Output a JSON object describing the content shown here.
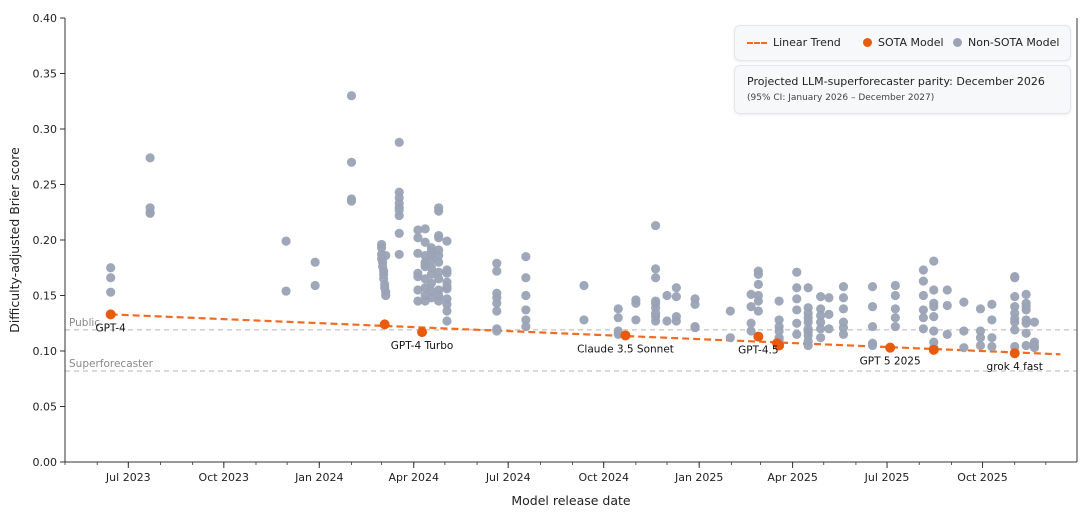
{
  "chart_data": {
    "type": "scatter",
    "xlabel": "Model release date",
    "ylabel": "Difficulty-adjusted Brier score",
    "ylim": [
      0.0,
      0.4
    ],
    "yticks": [
      "0.00",
      "0.05",
      "0.10",
      "0.15",
      "0.20",
      "0.25",
      "0.30",
      "0.35",
      "0.40"
    ],
    "xlim": [
      "2023-05-01",
      "2025-12-31"
    ],
    "xticks": [
      {
        "label": "Jul 2023",
        "date": "2023-07-01"
      },
      {
        "label": "Oct 2023",
        "date": "2023-10-01"
      },
      {
        "label": "Jan 2024",
        "date": "2024-01-01"
      },
      {
        "label": "Apr 2024",
        "date": "2024-04-01"
      },
      {
        "label": "Jul 2024",
        "date": "2024-07-01"
      },
      {
        "label": "Oct 2024",
        "date": "2024-10-01"
      },
      {
        "label": "Jan 2025",
        "date": "2025-01-01"
      },
      {
        "label": "Apr 2025",
        "date": "2025-04-01"
      },
      {
        "label": "Jul 2025",
        "date": "2025-07-01"
      },
      {
        "label": "Oct 2025",
        "date": "2025-10-01"
      }
    ],
    "reference_lines": [
      {
        "name": "Public",
        "y": 0.119
      },
      {
        "name": "Superforecaster",
        "y": 0.082
      }
    ],
    "legend": {
      "position": "top-right",
      "entries": [
        {
          "label": "Linear Trend",
          "style": "dashed-line",
          "color": "#f26b21"
        },
        {
          "label": "SOTA Model",
          "style": "dot",
          "color": "#ea5a0c"
        },
        {
          "label": "Non-SOTA Model",
          "style": "dot",
          "color": "#9aa3b5"
        }
      ]
    },
    "projection": {
      "line1": "Projected LLM-superforecaster parity: December 2026",
      "line2": "(95% CI: January 2026 – December 2027)"
    },
    "trend": {
      "x": [
        "2023-06-14",
        "2025-12-15"
      ],
      "y": [
        0.133,
        0.097
      ],
      "color": "#f26b21"
    },
    "sota_models": [
      {
        "x": "2023-06-14",
        "y": 0.133,
        "label": "GPT-4"
      },
      {
        "x": "2024-03-04",
        "y": 0.124,
        "label": ""
      },
      {
        "x": "2024-04-09",
        "y": 0.117,
        "label": "GPT-4 Turbo"
      },
      {
        "x": "2024-10-22",
        "y": 0.114,
        "label": "Claude 3.5 Sonnet"
      },
      {
        "x": "2025-02-27",
        "y": 0.113,
        "label": "GPT-4.5"
      },
      {
        "x": "2025-03-17",
        "y": 0.107,
        "label": ""
      },
      {
        "x": "2025-03-19",
        "y": 0.105,
        "label": ""
      },
      {
        "x": "2025-07-04",
        "y": 0.103,
        "label": "GPT 5 2025"
      },
      {
        "x": "2025-08-15",
        "y": 0.101,
        "label": ""
      },
      {
        "x": "2025-11-01",
        "y": 0.098,
        "label": "grok 4 fast"
      }
    ],
    "non_sota_models": {
      "x": [
        "2023-06-14",
        "2023-06-14",
        "2023-06-14",
        "2023-07-22",
        "2023-07-22",
        "2023-07-22",
        "2023-07-22",
        "2023-11-30",
        "2023-11-30",
        "2023-12-28",
        "2023-12-28",
        "2024-02-01",
        "2024-02-01",
        "2024-02-01",
        "2024-02-01",
        "2024-03-01",
        "2024-03-01",
        "2024-03-01",
        "2024-03-01",
        "2024-03-02",
        "2024-03-02",
        "2024-03-03",
        "2024-03-03",
        "2024-03-03",
        "2024-03-04",
        "2024-03-04",
        "2024-03-05",
        "2024-03-05",
        "2024-03-05",
        "2024-03-18",
        "2024-03-18",
        "2024-03-18",
        "2024-03-18",
        "2024-03-18",
        "2024-03-18",
        "2024-03-18",
        "2024-03-18",
        "2024-03-18",
        "2024-04-05",
        "2024-04-05",
        "2024-04-05",
        "2024-04-05",
        "2024-04-05",
        "2024-04-05",
        "2024-04-05",
        "2024-04-12",
        "2024-04-12",
        "2024-04-12",
        "2024-04-12",
        "2024-04-12",
        "2024-04-12",
        "2024-04-12",
        "2024-04-12",
        "2024-04-12",
        "2024-04-12",
        "2024-04-18",
        "2024-04-18",
        "2024-04-18",
        "2024-04-18",
        "2024-04-18",
        "2024-04-18",
        "2024-04-18",
        "2024-04-18",
        "2024-04-18",
        "2024-04-25",
        "2024-04-25",
        "2024-04-25",
        "2024-04-25",
        "2024-04-25",
        "2024-04-25",
        "2024-04-25",
        "2024-04-25",
        "2024-04-25",
        "2024-04-25",
        "2024-04-25",
        "2024-04-25",
        "2024-05-03",
        "2024-05-03",
        "2024-05-03",
        "2024-05-03",
        "2024-05-03",
        "2024-05-03",
        "2024-05-03",
        "2024-05-03",
        "2024-05-03",
        "2024-05-03",
        "2024-06-20",
        "2024-06-20",
        "2024-06-20",
        "2024-06-20",
        "2024-06-20",
        "2024-06-20",
        "2024-06-20",
        "2024-06-20",
        "2024-07-18",
        "2024-07-18",
        "2024-07-18",
        "2024-07-18",
        "2024-07-18",
        "2024-07-18",
        "2024-09-12",
        "2024-09-12",
        "2024-10-15",
        "2024-10-15",
        "2024-10-15",
        "2024-10-15",
        "2024-11-01",
        "2024-11-01",
        "2024-11-01",
        "2024-11-20",
        "2024-11-20",
        "2024-11-20",
        "2024-11-20",
        "2024-11-20",
        "2024-11-20",
        "2024-11-20",
        "2024-11-20",
        "2024-11-20",
        "2024-12-01",
        "2024-12-01",
        "2024-12-10",
        "2024-12-10",
        "2024-12-10",
        "2024-12-10",
        "2024-12-28",
        "2024-12-28",
        "2024-12-28",
        "2024-12-28",
        "2025-01-31",
        "2025-01-31",
        "2025-02-20",
        "2025-02-20",
        "2025-02-20",
        "2025-02-20",
        "2025-02-27",
        "2025-02-27",
        "2025-02-27",
        "2025-02-27",
        "2025-02-27",
        "2025-02-27",
        "2025-03-19",
        "2025-03-19",
        "2025-03-19",
        "2025-03-19",
        "2025-03-19",
        "2025-03-19",
        "2025-03-19",
        "2025-04-05",
        "2025-04-05",
        "2025-04-05",
        "2025-04-05",
        "2025-04-05",
        "2025-04-05",
        "2025-04-16",
        "2025-04-16",
        "2025-04-16",
        "2025-04-16",
        "2025-04-16",
        "2025-04-16",
        "2025-04-16",
        "2025-04-16",
        "2025-04-16",
        "2025-04-16",
        "2025-04-28",
        "2025-04-28",
        "2025-04-28",
        "2025-04-28",
        "2025-04-28",
        "2025-04-28",
        "2025-05-06",
        "2025-05-06",
        "2025-05-06",
        "2025-05-20",
        "2025-05-20",
        "2025-05-20",
        "2025-05-20",
        "2025-05-20",
        "2025-05-20",
        "2025-06-17",
        "2025-06-17",
        "2025-06-17",
        "2025-06-17",
        "2025-06-17",
        "2025-07-09",
        "2025-07-09",
        "2025-07-09",
        "2025-07-09",
        "2025-07-09",
        "2025-08-05",
        "2025-08-05",
        "2025-08-05",
        "2025-08-05",
        "2025-08-05",
        "2025-08-05",
        "2025-08-15",
        "2025-08-15",
        "2025-08-15",
        "2025-08-15",
        "2025-08-15",
        "2025-08-15",
        "2025-08-15",
        "2025-08-15",
        "2025-08-28",
        "2025-08-28",
        "2025-08-28",
        "2025-09-13",
        "2025-09-13",
        "2025-09-13",
        "2025-09-29",
        "2025-09-29",
        "2025-09-29",
        "2025-09-29",
        "2025-10-10",
        "2025-10-10",
        "2025-10-10",
        "2025-10-10",
        "2025-11-01",
        "2025-11-01",
        "2025-11-01",
        "2025-11-01",
        "2025-11-01",
        "2025-11-01",
        "2025-11-01",
        "2025-11-01",
        "2025-11-01",
        "2025-11-12",
        "2025-11-12",
        "2025-11-12",
        "2025-11-12",
        "2025-11-12",
        "2025-11-12",
        "2025-11-12",
        "2025-11-12",
        "2025-11-20",
        "2025-11-20",
        "2025-11-20",
        "2025-11-20"
      ],
      "y": [
        0.175,
        0.166,
        0.153,
        0.274,
        0.229,
        0.224,
        0.225,
        0.199,
        0.154,
        0.18,
        0.159,
        0.33,
        0.27,
        0.237,
        0.235,
        0.196,
        0.193,
        0.187,
        0.183,
        0.18,
        0.176,
        0.172,
        0.169,
        0.165,
        0.16,
        0.157,
        0.153,
        0.15,
        0.186,
        0.288,
        0.243,
        0.238,
        0.229,
        0.222,
        0.206,
        0.187,
        0.227,
        0.233,
        0.209,
        0.202,
        0.188,
        0.17,
        0.167,
        0.155,
        0.145,
        0.21,
        0.198,
        0.186,
        0.18,
        0.176,
        0.165,
        0.157,
        0.15,
        0.145,
        0.178,
        0.193,
        0.19,
        0.186,
        0.182,
        0.175,
        0.169,
        0.161,
        0.154,
        0.148,
        0.229,
        0.226,
        0.204,
        0.202,
        0.191,
        0.186,
        0.18,
        0.171,
        0.165,
        0.155,
        0.15,
        0.145,
        0.199,
        0.173,
        0.17,
        0.162,
        0.156,
        0.147,
        0.142,
        0.136,
        0.127,
        0.158,
        0.179,
        0.172,
        0.152,
        0.148,
        0.143,
        0.136,
        0.12,
        0.118,
        0.185,
        0.166,
        0.15,
        0.137,
        0.128,
        0.122,
        0.159,
        0.128,
        0.138,
        0.13,
        0.118,
        0.115,
        0.128,
        0.143,
        0.146,
        0.213,
        0.174,
        0.166,
        0.145,
        0.143,
        0.139,
        0.134,
        0.131,
        0.127,
        0.15,
        0.127,
        0.157,
        0.149,
        0.131,
        0.127,
        0.147,
        0.142,
        0.122,
        0.121,
        0.136,
        0.112,
        0.151,
        0.14,
        0.125,
        0.118,
        0.172,
        0.169,
        0.16,
        0.15,
        0.145,
        0.136,
        0.145,
        0.128,
        0.122,
        0.118,
        0.112,
        0.11,
        0.108,
        0.171,
        0.157,
        0.147,
        0.137,
        0.125,
        0.115,
        0.157,
        0.139,
        0.134,
        0.13,
        0.126,
        0.12,
        0.117,
        0.114,
        0.109,
        0.105,
        0.149,
        0.138,
        0.132,
        0.126,
        0.12,
        0.112,
        0.148,
        0.133,
        0.12,
        0.158,
        0.148,
        0.138,
        0.126,
        0.121,
        0.115,
        0.158,
        0.14,
        0.122,
        0.107,
        0.105,
        0.159,
        0.15,
        0.138,
        0.13,
        0.122,
        0.173,
        0.163,
        0.15,
        0.137,
        0.13,
        0.12,
        0.181,
        0.155,
        0.143,
        0.14,
        0.131,
        0.118,
        0.108,
        0.103,
        0.155,
        0.141,
        0.115,
        0.144,
        0.118,
        0.103,
        0.138,
        0.118,
        0.112,
        0.105,
        0.142,
        0.128,
        0.112,
        0.104,
        0.167,
        0.166,
        0.149,
        0.14,
        0.134,
        0.129,
        0.126,
        0.119,
        0.104,
        0.151,
        0.143,
        0.14,
        0.137,
        0.128,
        0.125,
        0.116,
        0.105,
        0.126,
        0.108,
        0.105,
        0.103
      ],
      "color": "#9aa3b5"
    }
  }
}
